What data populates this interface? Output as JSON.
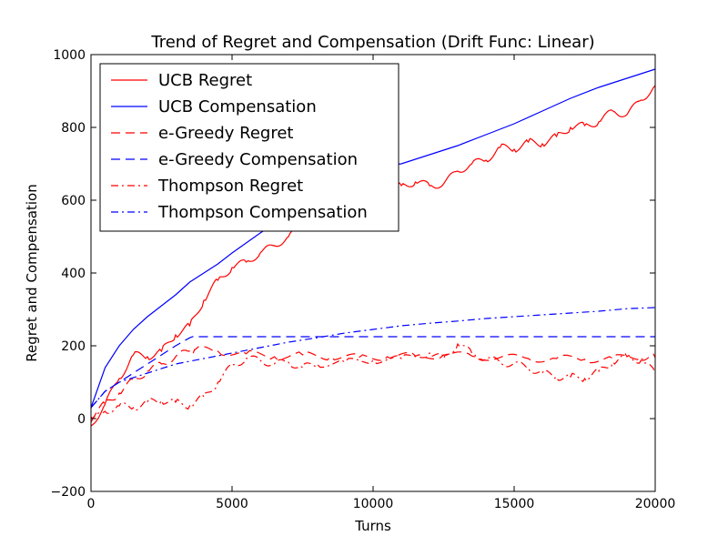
{
  "chart_data": {
    "type": "line",
    "title": "Trend of Regret and Compensation (Drift Func: Linear)",
    "xlabel": "Turns",
    "ylabel": "Regret and Compensation",
    "xlim": [
      0,
      20000
    ],
    "ylim": [
      -200,
      1000
    ],
    "xticks": [
      0,
      5000,
      10000,
      15000,
      20000
    ],
    "yticks": [
      -200,
      0,
      200,
      400,
      600,
      800,
      1000
    ],
    "xtick_labels": [
      "0",
      "5000",
      "10000",
      "15000",
      "20000"
    ],
    "ytick_labels": [
      "−200",
      "0",
      "200",
      "400",
      "600",
      "800",
      "1000"
    ],
    "grid": false,
    "legend_position": "top-left",
    "series": [
      {
        "name": "UCB Regret",
        "color": "#ff0000",
        "dash": "solid",
        "x": [
          0,
          500,
          1000,
          1500,
          2000,
          2500,
          3000,
          3500,
          4000,
          4500,
          5000,
          5500,
          6000,
          6500,
          7000,
          7500,
          8000,
          8500,
          9000,
          9500,
          10000,
          10500,
          11000,
          11500,
          12000,
          12500,
          13000,
          13500,
          14000,
          14500,
          15000,
          15500,
          16000,
          16500,
          17000,
          17500,
          18000,
          18500,
          19000,
          19500,
          20000
        ],
        "values": [
          -20,
          40,
          110,
          175,
          170,
          185,
          230,
          255,
          325,
          380,
          415,
          430,
          455,
          475,
          500,
          525,
          545,
          555,
          570,
          580,
          600,
          620,
          640,
          650,
          640,
          645,
          680,
          700,
          710,
          745,
          740,
          760,
          755,
          775,
          800,
          805,
          815,
          845,
          835,
          875,
          915
        ]
      },
      {
        "name": "UCB Compensation",
        "color": "#0000ff",
        "dash": "solid",
        "x": [
          0,
          500,
          1000,
          1500,
          2000,
          2500,
          3000,
          3500,
          4000,
          4500,
          5000,
          6000,
          7000,
          8000,
          9000,
          10000,
          11000,
          12000,
          13000,
          14000,
          15000,
          16000,
          17000,
          18000,
          19000,
          20000
        ],
        "values": [
          30,
          140,
          200,
          245,
          280,
          310,
          340,
          375,
          400,
          425,
          455,
          510,
          560,
          610,
          655,
          690,
          700,
          725,
          750,
          780,
          810,
          845,
          880,
          910,
          935,
          960
        ]
      },
      {
        "name": "e-Greedy Regret",
        "color": "#ff0000",
        "dash": "dashed",
        "x": [
          0,
          500,
          1000,
          1500,
          2000,
          2500,
          3000,
          3500,
          3700,
          4500,
          5500,
          6500,
          7500,
          8500,
          9500,
          10500,
          11500,
          12500,
          13500,
          14500,
          15500,
          16500,
          17500,
          18500,
          19500,
          20000
        ],
        "values": [
          5,
          40,
          70,
          105,
          130,
          150,
          170,
          185,
          190,
          185,
          178,
          170,
          175,
          170,
          168,
          170,
          172,
          175,
          172,
          168,
          165,
          165,
          163,
          165,
          170,
          168
        ]
      },
      {
        "name": "e-Greedy Compensation",
        "color": "#0000ff",
        "dash": "dashed",
        "x": [
          0,
          500,
          1000,
          1500,
          2000,
          2500,
          3000,
          3500,
          3600,
          20000
        ],
        "values": [
          30,
          75,
          100,
          125,
          150,
          175,
          200,
          222,
          225,
          225
        ]
      },
      {
        "name": "Thompson Regret",
        "color": "#ff0000",
        "dash": "dashdot",
        "x": [
          0,
          500,
          1000,
          1500,
          2000,
          2500,
          3000,
          3500,
          4000,
          4500,
          5000,
          5500,
          6000,
          6500,
          7000,
          7500,
          8000,
          9000,
          10000,
          11000,
          12000,
          12500,
          13000,
          13500,
          14000,
          14500,
          15000,
          15500,
          16000,
          16500,
          17000,
          17500,
          18000,
          18500,
          19000,
          19500,
          20000
        ],
        "values": [
          -10,
          20,
          35,
          30,
          45,
          50,
          45,
          35,
          60,
          100,
          145,
          165,
          160,
          150,
          155,
          140,
          150,
          155,
          160,
          165,
          180,
          165,
          205,
          180,
          165,
          155,
          150,
          140,
          125,
          115,
          115,
          110,
          130,
          155,
          170,
          160,
          125
        ]
      },
      {
        "name": "Thompson Compensation",
        "color": "#0000ff",
        "dash": "dashdot",
        "x": [
          0,
          500,
          1000,
          2000,
          3000,
          4000,
          5000,
          6000,
          7000,
          8000,
          9000,
          10000,
          11000,
          12000,
          13000,
          14000,
          15000,
          16000,
          17000,
          18000,
          19000,
          20000
        ],
        "values": [
          30,
          75,
          100,
          125,
          150,
          165,
          180,
          195,
          210,
          222,
          235,
          245,
          255,
          262,
          268,
          275,
          280,
          285,
          290,
          295,
          302,
          305
        ]
      }
    ]
  }
}
